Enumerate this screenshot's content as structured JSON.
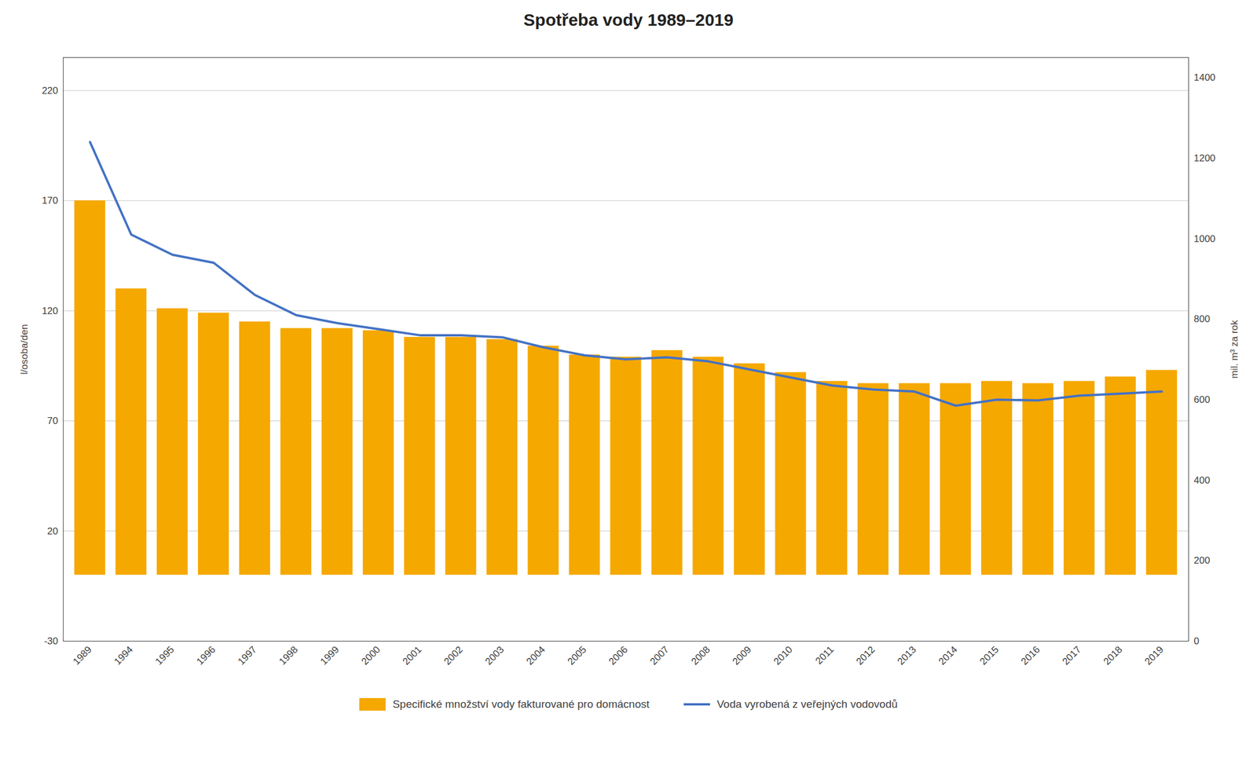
{
  "chart_data": {
    "type": "bar",
    "title": "Spotřeba vody 1989–2019",
    "categories": [
      "1989",
      "1994",
      "1995",
      "1996",
      "1997",
      "1998",
      "1999",
      "2000",
      "2001",
      "2002",
      "2003",
      "2004",
      "2005",
      "2006",
      "2007",
      "2008",
      "2009",
      "2010",
      "2011",
      "2012",
      "2013",
      "2014",
      "2015",
      "2016",
      "2017",
      "2018",
      "2019"
    ],
    "series": [
      {
        "name": "Specifické množství vody fakturované pro domácnost",
        "type": "bar",
        "color": "#F5A800",
        "values": [
          170,
          130,
          121,
          119,
          115,
          112,
          112,
          111,
          108,
          108,
          107,
          104,
          100,
          99,
          102,
          99,
          96,
          92,
          88,
          87,
          87,
          87,
          88,
          87,
          88,
          90,
          93
        ]
      },
      {
        "name": "Voda vyrobená z veřejných vodovodů",
        "type": "line",
        "color": "#4472C4",
        "axis": "y2",
        "values": [
          1240,
          1010,
          960,
          940,
          860,
          810,
          790,
          775,
          760,
          760,
          755,
          730,
          710,
          700,
          705,
          695,
          675,
          655,
          635,
          625,
          620,
          585,
          600,
          598,
          610,
          615,
          620
        ]
      }
    ],
    "ylabel": "l/osoba/den",
    "y2label": "mil. m³ za rok",
    "ylim": [
      -30,
      235
    ],
    "yticks": [
      -30,
      20,
      70,
      120,
      170,
      220
    ],
    "y2lim": [
      0,
      1450
    ],
    "y2ticks": [
      0,
      200,
      400,
      600,
      800,
      1000,
      1200,
      1400
    ],
    "grid": true,
    "legend": "bottom"
  }
}
